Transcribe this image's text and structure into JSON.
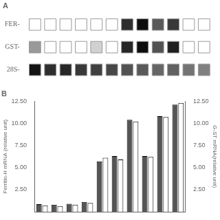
{
  "chart_data": [
    {
      "type": "heatmap",
      "title": "A",
      "categories": [
        null,
        null,
        null,
        null,
        null,
        null,
        null,
        null,
        null,
        null,
        null,
        null
      ],
      "series": [
        {
          "name": "FER-",
          "values": [
            0.0,
            0.0,
            0.0,
            0.0,
            0.0,
            0.0,
            0.82,
            0.95,
            0.65,
            0.78,
            0.0,
            0.0
          ]
        },
        {
          "name": "GST-",
          "values": [
            0.4,
            0.0,
            0.0,
            0.0,
            0.18,
            0.0,
            0.85,
            0.95,
            0.68,
            0.88,
            0.0,
            0.0
          ]
        },
        {
          "name": "28S-",
          "values": [
            0.92,
            0.82,
            0.85,
            0.78,
            0.75,
            0.72,
            0.68,
            0.65,
            0.6,
            0.62,
            0.55,
            0.5
          ]
        }
      ],
      "tick_labels": "y",
      "grid": false
    },
    {
      "type": "bar",
      "title": "B",
      "categories": [
        null,
        null,
        null,
        null,
        null,
        null,
        null,
        null,
        null,
        null
      ],
      "ylabel": "Ferritin-H mRNA (relative unit)",
      "y2label": "G-ST mRNA(relative unit)",
      "series": [
        {
          "color": "#555555",
          "values": [
            0.85,
            0.8,
            0.9,
            1.1,
            5.7,
            6.3,
            10.4,
            6.3,
            10.8,
            12.1
          ]
        },
        {
          "color": "#ffffff",
          "axis": "y2",
          "values": [
            0.72,
            0.65,
            0.8,
            1.0,
            6.1,
            5.9,
            10.2,
            6.2,
            10.7,
            12.3
          ]
        }
      ],
      "ylim": [
        0,
        12.5
      ],
      "yticks": [
        {
          "value": 2.5,
          "label": "2.50"
        },
        {
          "value": 5,
          "label": "5.00"
        },
        {
          "value": 7.5,
          "label": "7.50"
        },
        {
          "value": 10,
          "label": "10.00"
        },
        {
          "value": 12.5,
          "label": "12.50"
        }
      ],
      "y2lim": [
        0,
        12.5
      ],
      "y2ticks": [
        {
          "value": 2.5,
          "label": "2.50"
        },
        {
          "value": 5,
          "label": "5.00"
        },
        {
          "value": 7.5,
          "label": "7.50"
        },
        {
          "value": 10,
          "label": "10.00"
        },
        {
          "value": 12.5,
          "label": "12.50"
        }
      ],
      "grid": false,
      "tick_labels": "y"
    }
  ]
}
